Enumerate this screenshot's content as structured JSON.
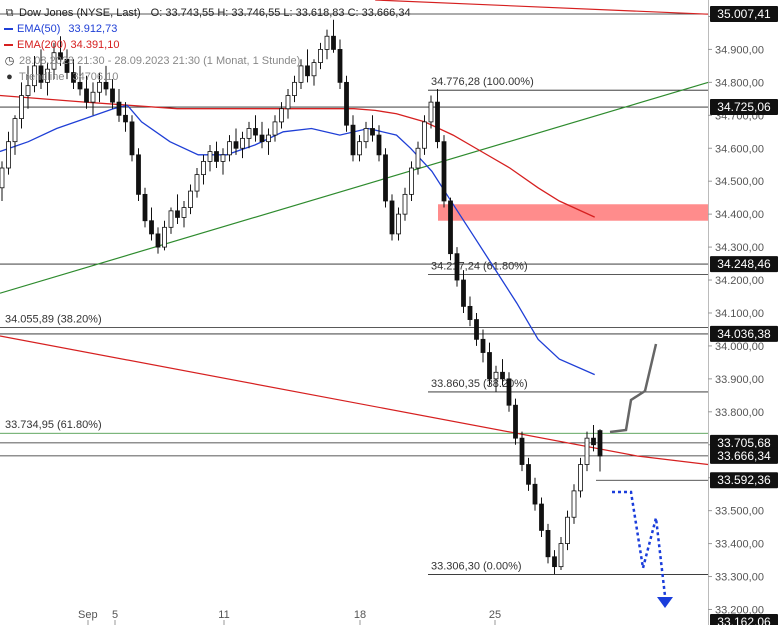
{
  "header": {
    "instrument": "Dow Jones (NYSE, Last)",
    "ohlc": "O: 33.743,55   H: 33.746,55   L: 33.618,83   C: 33.666,34",
    "ema50_label": "EMA(50)",
    "ema50_value": "33.912,73",
    "ema200_label": "EMA(200)",
    "ema200_value": "34.391,10",
    "period": "28.08.2023 21:30 - 28.09.2023 21:30   (1 Monat, 1 Stunde)",
    "trendline_label": "Trendline",
    "trendline_value": "34706.10"
  },
  "colors": {
    "ema50": "#1f3fd6",
    "ema200": "#d62020",
    "trendline": "#2e8b2e",
    "resistance_zone": "#ff7f7f",
    "projection_up": "#666666",
    "projection_down": "#1a3ddb",
    "price_badge": "#111111"
  },
  "chart_data": {
    "type": "candlestick",
    "y_axis": {
      "min": 33162,
      "max": 35050,
      "ticks": [
        35000,
        34900,
        34800,
        34700,
        34600,
        34500,
        34400,
        34300,
        34200,
        34100,
        34000,
        33900,
        33800,
        33700,
        33600,
        33500,
        33400,
        33300,
        33200
      ],
      "tick_labels": [
        "35.000,00",
        "34.900,00",
        "34.800,00",
        "34.700,00",
        "34.600,00",
        "34.500,00",
        "34.400,00",
        "34.300,00",
        "34.200,00",
        "34.100,00",
        "34.000,00",
        "33.900,00",
        "33.800,00",
        "33.700,00",
        "33.600,00",
        "33.500,00",
        "33.400,00",
        "33.300,00",
        "33.200,00"
      ]
    },
    "x_axis": {
      "labels": [
        "Sep",
        "5",
        "11",
        "18",
        "25"
      ]
    },
    "price_labels": [
      {
        "text": "35.007,41",
        "value": 35007.41
      },
      {
        "text": "34.725,06",
        "value": 34725.06
      },
      {
        "text": "34.248,46",
        "value": 34248.46
      },
      {
        "text": "34.036,38",
        "value": 34036.38
      },
      {
        "text": "33.705,68",
        "value": 33705.68
      },
      {
        "text": "33.666,34",
        "value": 33666.34
      },
      {
        "text": "33.592,36",
        "value": 33592.36
      },
      {
        "text": "33.162,06",
        "value": 33162.06
      }
    ],
    "fib_levels_right": [
      {
        "text": "34.776,28 (100.00%)",
        "value": 34776.28
      },
      {
        "text": "34.217,24 (61.80%)",
        "value": 34217.24
      },
      {
        "text": "33.860,35 (38.20%)",
        "value": 33860.35
      },
      {
        "text": "33.306,30 (0.00%)",
        "value": 33306.3
      }
    ],
    "fib_levels_left": [
      {
        "text": "34.055,89 (38.20%)",
        "value": 34055.89
      },
      {
        "text": "33.734,95 (61.80%)",
        "value": 33734.95
      }
    ],
    "resistance_zone": {
      "from": 34380,
      "to": 34430
    },
    "candles": [
      [
        34480,
        34560,
        34440,
        34540
      ],
      [
        34540,
        34650,
        34520,
        34620
      ],
      [
        34620,
        34700,
        34580,
        34690
      ],
      [
        34690,
        34800,
        34660,
        34760
      ],
      [
        34760,
        34850,
        34720,
        34790
      ],
      [
        34790,
        34880,
        34770,
        34850
      ],
      [
        34850,
        34900,
        34780,
        34800
      ],
      [
        34800,
        34860,
        34760,
        34840
      ],
      [
        34840,
        34920,
        34810,
        34890
      ],
      [
        34890,
        34940,
        34850,
        34870
      ],
      [
        34870,
        34900,
        34810,
        34830
      ],
      [
        34830,
        34870,
        34780,
        34800
      ],
      [
        34800,
        34850,
        34760,
        34780
      ],
      [
        34780,
        34820,
        34720,
        34740
      ],
      [
        34740,
        34800,
        34700,
        34770
      ],
      [
        34770,
        34830,
        34740,
        34800
      ],
      [
        34800,
        34850,
        34760,
        34780
      ],
      [
        34780,
        34810,
        34720,
        34740
      ],
      [
        34740,
        34780,
        34680,
        34700
      ],
      [
        34700,
        34740,
        34650,
        34680
      ],
      [
        34680,
        34700,
        34560,
        34580
      ],
      [
        34580,
        34600,
        34440,
        34460
      ],
      [
        34460,
        34480,
        34360,
        34380
      ],
      [
        34380,
        34420,
        34320,
        34340
      ],
      [
        34340,
        34360,
        34280,
        34300
      ],
      [
        34300,
        34380,
        34290,
        34360
      ],
      [
        34360,
        34420,
        34340,
        34410
      ],
      [
        34410,
        34460,
        34370,
        34390
      ],
      [
        34390,
        34440,
        34360,
        34420
      ],
      [
        34420,
        34490,
        34400,
        34470
      ],
      [
        34470,
        34540,
        34450,
        34520
      ],
      [
        34520,
        34580,
        34490,
        34560
      ],
      [
        34560,
        34610,
        34530,
        34590
      ],
      [
        34590,
        34620,
        34540,
        34560
      ],
      [
        34560,
        34600,
        34520,
        34580
      ],
      [
        34580,
        34640,
        34560,
        34620
      ],
      [
        34620,
        34660,
        34580,
        34600
      ],
      [
        34600,
        34650,
        34570,
        34630
      ],
      [
        34630,
        34680,
        34600,
        34660
      ],
      [
        34660,
        34700,
        34620,
        34640
      ],
      [
        34640,
        34680,
        34600,
        34620
      ],
      [
        34620,
        34660,
        34580,
        34640
      ],
      [
        34640,
        34700,
        34620,
        34680
      ],
      [
        34680,
        34740,
        34660,
        34720
      ],
      [
        34720,
        34780,
        34690,
        34760
      ],
      [
        34760,
        34820,
        34740,
        34800
      ],
      [
        34800,
        34870,
        34780,
        34850
      ],
      [
        34850,
        34900,
        34800,
        34820
      ],
      [
        34820,
        34870,
        34790,
        34860
      ],
      [
        34860,
        34920,
        34840,
        34900
      ],
      [
        34900,
        34960,
        34870,
        34940
      ],
      [
        34940,
        34990,
        34890,
        34900
      ],
      [
        34900,
        34930,
        34780,
        34800
      ],
      [
        34800,
        34820,
        34650,
        34670
      ],
      [
        34670,
        34700,
        34560,
        34580
      ],
      [
        34580,
        34640,
        34560,
        34620
      ],
      [
        34620,
        34680,
        34600,
        34660
      ],
      [
        34660,
        34700,
        34620,
        34640
      ],
      [
        34640,
        34670,
        34560,
        34580
      ],
      [
        34580,
        34600,
        34420,
        34440
      ],
      [
        34440,
        34460,
        34320,
        34340
      ],
      [
        34340,
        34420,
        34320,
        34400
      ],
      [
        34400,
        34480,
        34380,
        34460
      ],
      [
        34460,
        34560,
        34440,
        34540
      ],
      [
        34540,
        34620,
        34520,
        34600
      ],
      [
        34600,
        34700,
        34580,
        34680
      ],
      [
        34680,
        34760,
        34660,
        34740
      ],
      [
        34740,
        34780,
        34600,
        34620
      ],
      [
        34620,
        34640,
        34420,
        34440
      ],
      [
        34440,
        34450,
        34260,
        34280
      ],
      [
        34280,
        34300,
        34180,
        34200
      ],
      [
        34200,
        34230,
        34100,
        34120
      ],
      [
        34120,
        34150,
        34060,
        34080
      ],
      [
        34080,
        34100,
        34000,
        34020
      ],
      [
        34020,
        34050,
        33950,
        33980
      ],
      [
        33980,
        34010,
        33880,
        33900
      ],
      [
        33900,
        33940,
        33860,
        33920
      ],
      [
        33920,
        33960,
        33880,
        33900
      ],
      [
        33900,
        33920,
        33800,
        33820
      ],
      [
        33820,
        33840,
        33700,
        33720
      ],
      [
        33720,
        33740,
        33620,
        33640
      ],
      [
        33640,
        33660,
        33560,
        33580
      ],
      [
        33580,
        33600,
        33500,
        33520
      ],
      [
        33520,
        33540,
        33420,
        33440
      ],
      [
        33440,
        33460,
        33340,
        33360
      ],
      [
        33360,
        33380,
        33306,
        33330
      ],
      [
        33330,
        33420,
        33320,
        33400
      ],
      [
        33400,
        33500,
        33380,
        33480
      ],
      [
        33480,
        33580,
        33460,
        33560
      ],
      [
        33560,
        33660,
        33540,
        33640
      ],
      [
        33640,
        33740,
        33620,
        33720
      ],
      [
        33720,
        33760,
        33680,
        33700
      ],
      [
        33743,
        33747,
        33619,
        33666
      ]
    ],
    "ema200": [
      [
        0,
        34760
      ],
      [
        0.12,
        34740
      ],
      [
        0.25,
        34720
      ],
      [
        0.33,
        34720
      ],
      [
        0.42,
        34720
      ],
      [
        0.5,
        34720
      ],
      [
        0.53,
        34715
      ],
      [
        0.56,
        34705
      ],
      [
        0.6,
        34680
      ],
      [
        0.64,
        34640
      ],
      [
        0.68,
        34590
      ],
      [
        0.72,
        34540
      ],
      [
        0.76,
        34480
      ],
      [
        0.79,
        34440
      ],
      [
        0.84,
        34391
      ]
    ],
    "ema50": [
      [
        0,
        34590
      ],
      [
        0.04,
        34620
      ],
      [
        0.08,
        34660
      ],
      [
        0.12,
        34690
      ],
      [
        0.16,
        34720
      ],
      [
        0.18,
        34730
      ],
      [
        0.2,
        34680
      ],
      [
        0.24,
        34620
      ],
      [
        0.28,
        34580
      ],
      [
        0.32,
        34580
      ],
      [
        0.36,
        34610
      ],
      [
        0.4,
        34650
      ],
      [
        0.44,
        34660
      ],
      [
        0.48,
        34640
      ],
      [
        0.52,
        34660
      ],
      [
        0.56,
        34640
      ],
      [
        0.58,
        34600
      ],
      [
        0.61,
        34530
      ],
      [
        0.64,
        34430
      ],
      [
        0.67,
        34330
      ],
      [
        0.7,
        34230
      ],
      [
        0.73,
        34130
      ],
      [
        0.76,
        34020
      ],
      [
        0.79,
        33960
      ],
      [
        0.84,
        33913
      ]
    ],
    "trendline": [
      [
        0,
        34160
      ],
      [
        1,
        34800
      ]
    ],
    "downtrend_line": [
      [
        0,
        34030
      ],
      [
        0.9,
        33666
      ],
      [
        1,
        33640
      ]
    ],
    "upper_red_line": [
      [
        0.53,
        35050
      ],
      [
        1,
        35007
      ]
    ]
  }
}
